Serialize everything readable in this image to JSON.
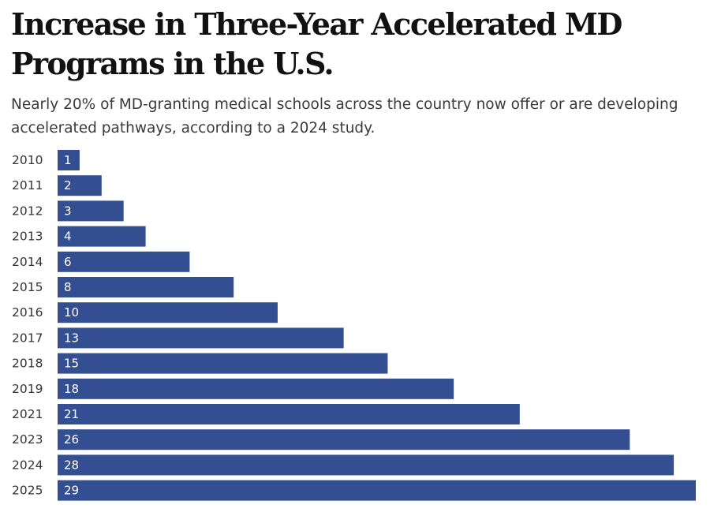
{
  "title": "Increase in Three-Year Accelerated MD Programs in the U.S.",
  "subtitle": "Nearly 20% of MD-granting medical schools across the country now offer or are developing accelerated pathways, according to a 2024 study.",
  "colors": {
    "bar": "#344f91",
    "bar_label": "#ffffff",
    "category_label": "#333333"
  },
  "chart_data": {
    "type": "bar",
    "orientation": "horizontal",
    "title": "Increase in Three-Year Accelerated MD Programs in the U.S.",
    "subtitle": "Nearly 20% of MD-granting medical schools across the country now offer or are developing accelerated pathways, according to a 2024 study.",
    "xlabel": "",
    "ylabel": "",
    "categories": [
      "2010",
      "2011",
      "2012",
      "2013",
      "2014",
      "2015",
      "2016",
      "2017",
      "2018",
      "2019",
      "2021",
      "2023",
      "2024",
      "2025"
    ],
    "values": [
      1,
      2,
      3,
      4,
      6,
      8,
      10,
      13,
      15,
      18,
      21,
      26,
      28,
      29
    ],
    "xlim": [
      0,
      29
    ],
    "grid": false,
    "legend": "none",
    "data_labels": true
  }
}
